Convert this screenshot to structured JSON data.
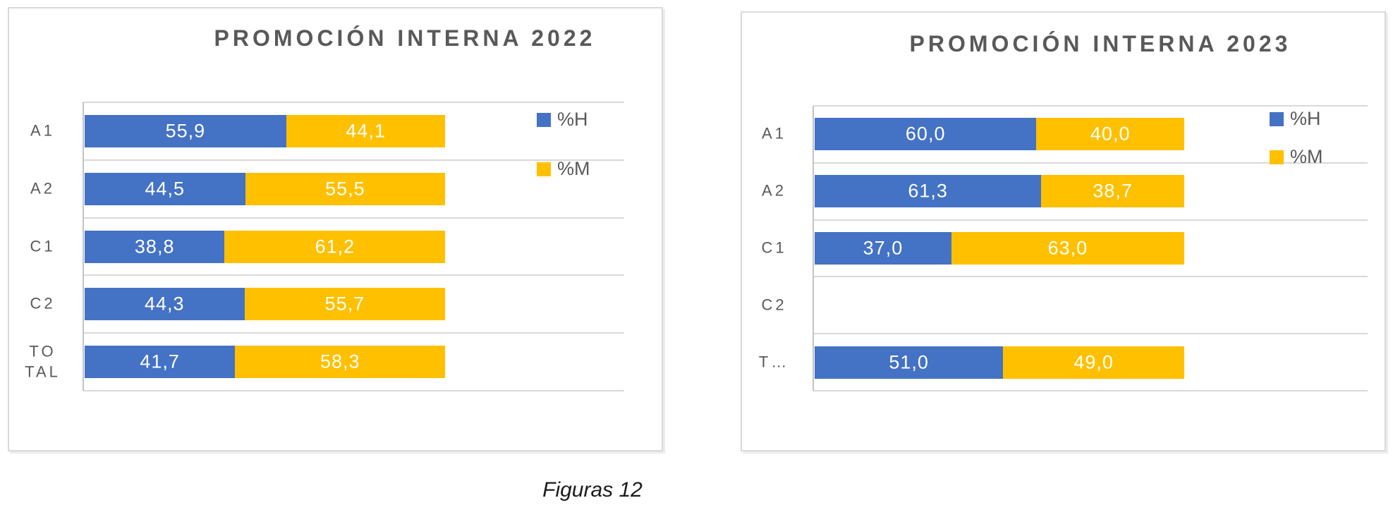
{
  "caption": "Figuras 12",
  "chart_data": [
    {
      "type": "bar",
      "orientation": "horizontal",
      "stacked": true,
      "title": "PROMOCIÓN INTERNA 2022",
      "categories": [
        "A1",
        "A2",
        "C1",
        "C2",
        "TOTAL"
      ],
      "category_axis_labels": [
        "A1",
        "A2",
        "C1",
        "C2",
        "TO\nTAL"
      ],
      "series": [
        {
          "name": "%H",
          "color": "#4472C4",
          "values": [
            55.9,
            44.5,
            38.8,
            44.3,
            41.7
          ],
          "labels": [
            "55,9",
            "44,5",
            "38,8",
            "44,3",
            "41,7"
          ]
        },
        {
          "name": "%M",
          "color": "#FFC000",
          "values": [
            44.1,
            55.5,
            61.2,
            55.7,
            58.3
          ],
          "labels": [
            "44,1",
            "55,5",
            "61,2",
            "55,7",
            "58,3"
          ]
        }
      ],
      "xlim": [
        0,
        150
      ],
      "grid": true,
      "gridline_color": "#D9D9D9",
      "legend_position": "inside-top-right",
      "title_color": "#595959",
      "value_label_color": "#FFFFFF"
    },
    {
      "type": "bar",
      "orientation": "horizontal",
      "stacked": true,
      "title": "PROMOCIÓN INTERNA 2023",
      "categories": [
        "A1",
        "A2",
        "C1",
        "C2",
        "TOTAL"
      ],
      "category_axis_labels": [
        "A1",
        "A2",
        "C1",
        "C2",
        "T…"
      ],
      "series": [
        {
          "name": "%H",
          "color": "#4472C4",
          "values": [
            60.0,
            61.3,
            37.0,
            null,
            51.0
          ],
          "labels": [
            "60,0",
            "61,3",
            "37,0",
            "",
            "51,0"
          ]
        },
        {
          "name": "%M",
          "color": "#FFC000",
          "values": [
            40.0,
            38.7,
            63.0,
            null,
            49.0
          ],
          "labels": [
            "40,0",
            "38,7",
            "63,0",
            "",
            "49,0"
          ]
        }
      ],
      "xlim": [
        0,
        150
      ],
      "grid": true,
      "gridline_color": "#D9D9D9",
      "legend_position": "inside-top-right",
      "title_color": "#595959",
      "value_label_color": "#FFFFFF"
    }
  ]
}
